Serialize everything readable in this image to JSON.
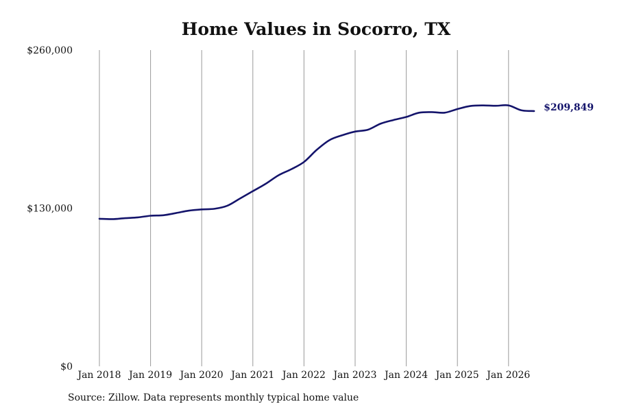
{
  "chart_data": {
    "type": "line",
    "title": "Home Values in Socorro, TX",
    "xlabel": "",
    "ylabel": "",
    "ylim": [
      0,
      260000
    ],
    "yticks": [
      "$0",
      "$130,000",
      "$260,000"
    ],
    "xtick_labels": [
      "Jan 2018",
      "Jan 2019",
      "Jan 2020",
      "Jan 2021",
      "Jan 2022",
      "Jan 2023",
      "Jan 2024",
      "Jan 2025",
      "Jan 2026"
    ],
    "grid": "vertical",
    "line_color": "#14146b",
    "grid_color": "#999999",
    "end_label": "$209,849",
    "series": [
      {
        "values": [
          [
            "2018-01",
            121300
          ],
          [
            "2018-04",
            121000
          ],
          [
            "2018-07",
            121800
          ],
          [
            "2018-10",
            122400
          ],
          [
            "2019-01",
            123800
          ],
          [
            "2019-04",
            124200
          ],
          [
            "2019-07",
            126000
          ],
          [
            "2019-10",
            128000
          ],
          [
            "2020-01",
            129000
          ],
          [
            "2020-04",
            129500
          ],
          [
            "2020-07",
            132000
          ],
          [
            "2020-10",
            138000
          ],
          [
            "2021-01",
            144000
          ],
          [
            "2021-04",
            150000
          ],
          [
            "2021-07",
            157000
          ],
          [
            "2021-10",
            162000
          ],
          [
            "2022-01",
            168000
          ],
          [
            "2022-04",
            178000
          ],
          [
            "2022-07",
            186000
          ],
          [
            "2022-10",
            190000
          ],
          [
            "2023-01",
            193000
          ],
          [
            "2023-04",
            194500
          ],
          [
            "2023-07",
            199500
          ],
          [
            "2023-10",
            202500
          ],
          [
            "2024-01",
            205000
          ],
          [
            "2024-04",
            208500
          ],
          [
            "2024-07",
            209000
          ],
          [
            "2024-10",
            208500
          ],
          [
            "2025-01",
            211500
          ],
          [
            "2025-04",
            214000
          ],
          [
            "2025-07",
            214500
          ],
          [
            "2025-10",
            214200
          ],
          [
            "2026-01",
            214500
          ],
          [
            "2026-04",
            210500
          ],
          [
            "2026-07",
            209849
          ]
        ]
      }
    ]
  },
  "source_note": "Source: Zillow. Data represents monthly typical home value"
}
